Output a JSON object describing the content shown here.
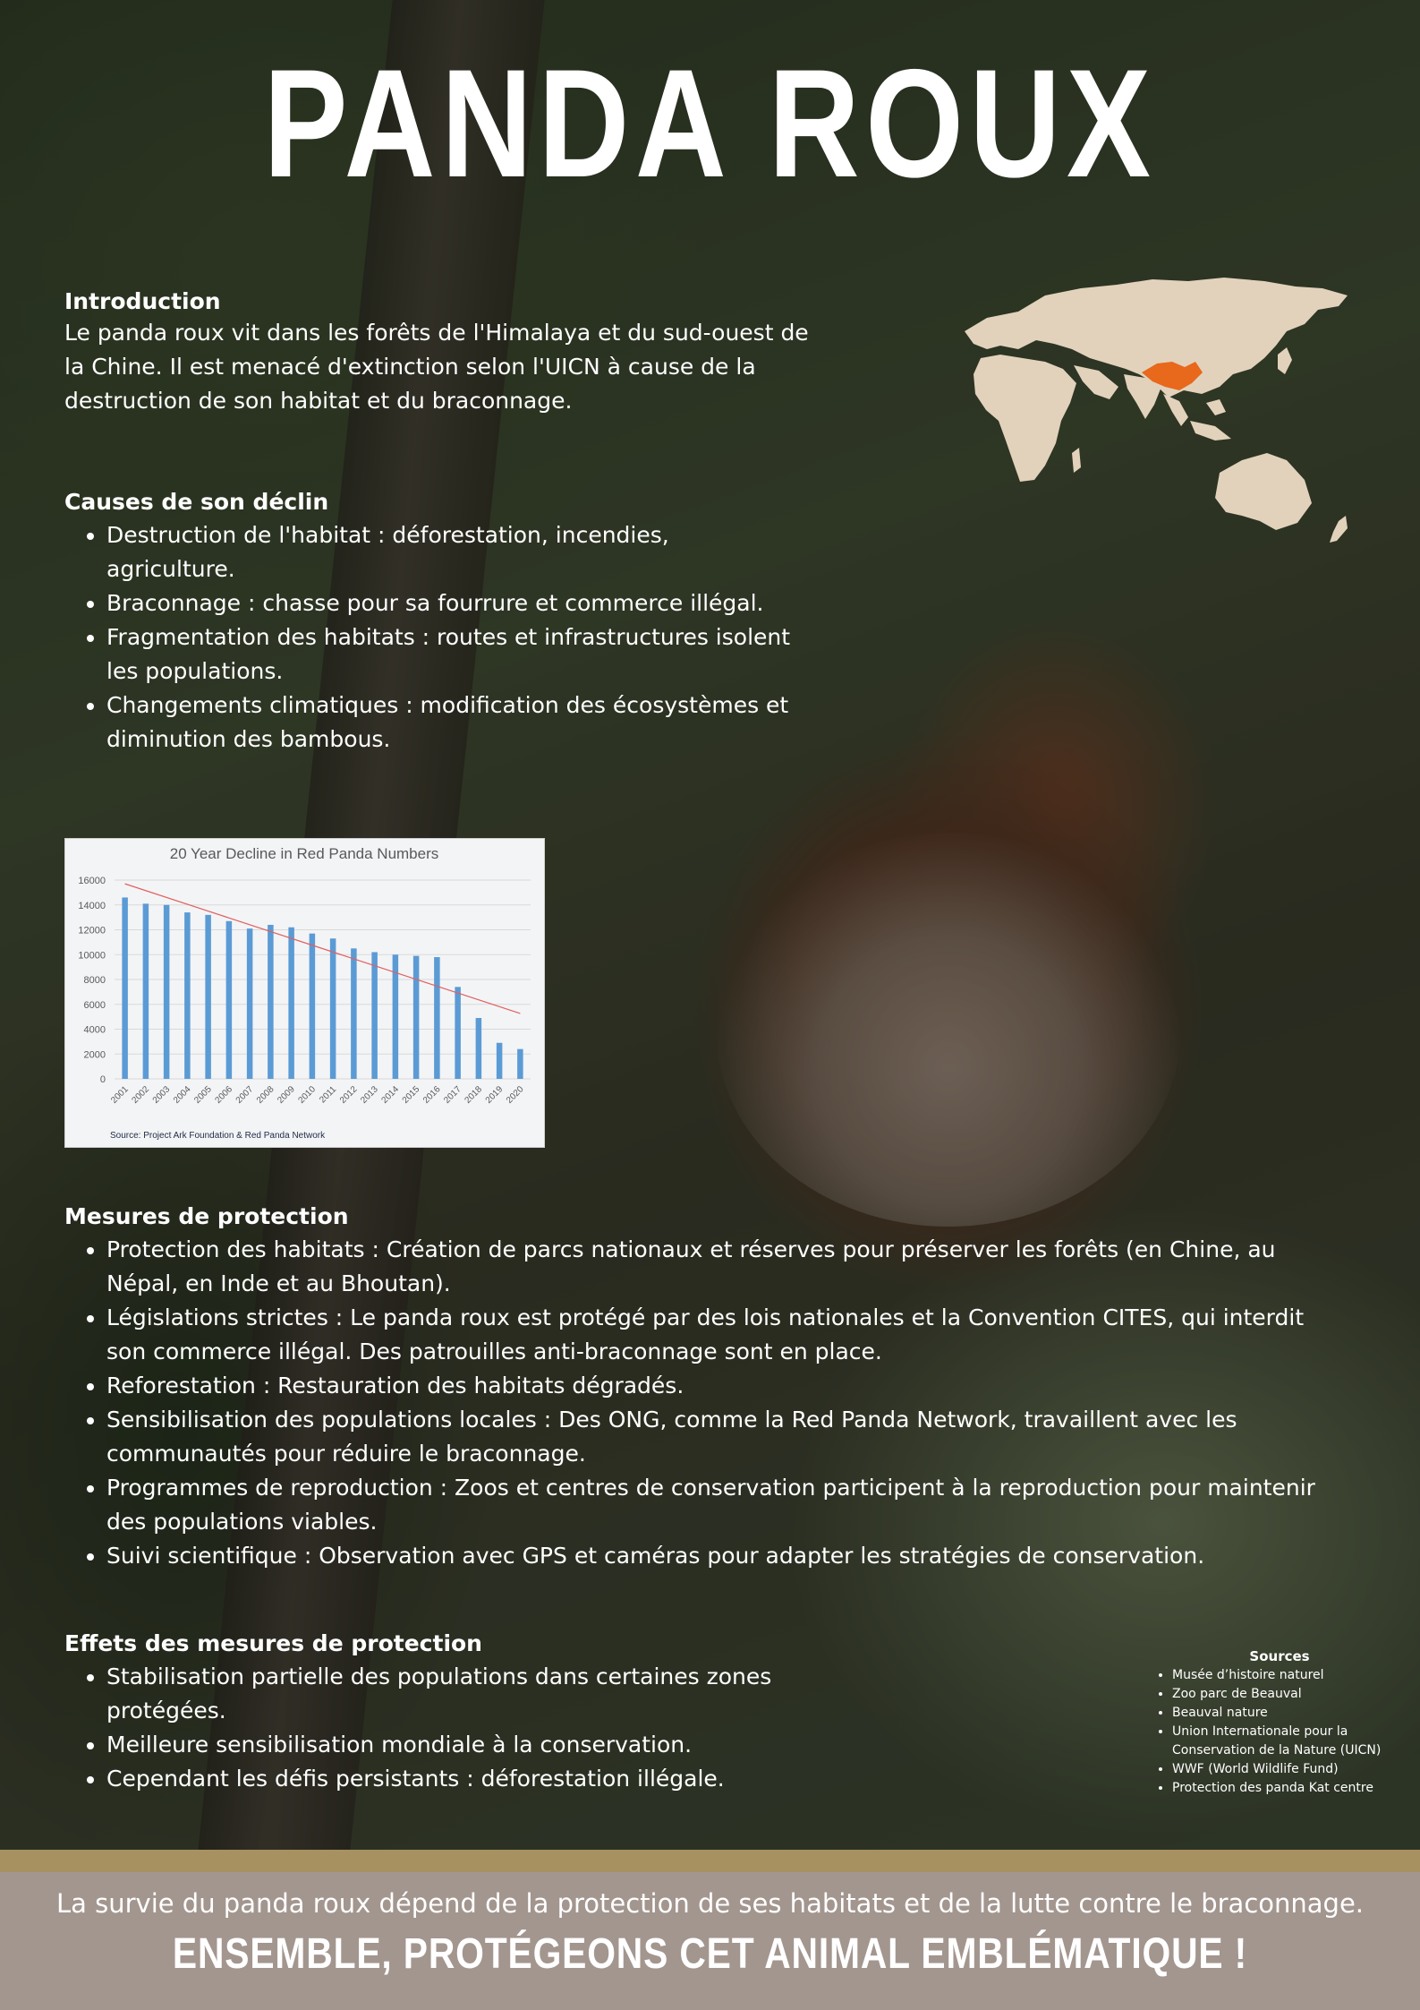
{
  "title": "PANDA ROUX",
  "introduction": {
    "heading": "Introduction",
    "text": "Le panda roux vit dans les forêts de l'Himalaya et du sud-ouest de la Chine. Il est menacé d'extinction selon l'UICN à cause de la destruction de son habitat et du braconnage."
  },
  "causes": {
    "heading": "Causes de son déclin",
    "items": [
      "Destruction de l'habitat : déforestation, incendies, agriculture.",
      "Braconnage : chasse pour sa fourrure et commerce illégal.",
      "Fragmentation des habitats : routes et infrastructures isolent les populations.",
      "Changements climatiques : modification des écosystèmes et diminution des bambous."
    ]
  },
  "chart_data": {
    "type": "bar",
    "title": "20 Year Decline in Red Panda Numbers",
    "source": "Source: Project Ark Foundation & Red Panda Network",
    "categories": [
      "2001",
      "2002",
      "2003",
      "2004",
      "2005",
      "2006",
      "2007",
      "2008",
      "2009",
      "2010",
      "2011",
      "2012",
      "2013",
      "2014",
      "2015",
      "2016",
      "2017",
      "2018",
      "2019",
      "2020"
    ],
    "values": [
      14600,
      14100,
      14000,
      13400,
      13200,
      12700,
      12100,
      12400,
      12200,
      11700,
      11300,
      10500,
      10200,
      10000,
      9900,
      9800,
      7400,
      4900,
      2900,
      2400
    ],
    "yticks": [
      0,
      2000,
      4000,
      6000,
      8000,
      10000,
      12000,
      14000,
      16000
    ],
    "ylim": [
      0,
      16000
    ],
    "trendline": true,
    "bar_color": "#5b9bd5",
    "trend_color": "#e06060",
    "grid": true
  },
  "mesures": {
    "heading": "Mesures de protection",
    "items": [
      "Protection des habitats : Création de parcs nationaux et réserves pour préserver les forêts (en Chine, au Népal, en Inde et au Bhoutan).",
      "Législations strictes : Le panda roux est protégé par des lois nationales et la Convention CITES, qui interdit son commerce illégal. Des patrouilles anti-braconnage sont en place.",
      "Reforestation : Restauration des habitats dégradés.",
      "Sensibilisation des populations locales : Des ONG, comme la Red Panda Network, travaillent avec les communautés pour réduire le braconnage.",
      "Programmes de reproduction : Zoos et centres de conservation participent à la reproduction pour maintenir des populations viables.",
      "Suivi scientifique : Observation avec GPS et caméras pour adapter les stratégies de conservation."
    ]
  },
  "effets": {
    "heading": "Effets des mesures de protection",
    "items": [
      "Stabilisation partielle des populations dans certaines zones protégées.",
      "Meilleure sensibilisation mondiale à la conservation.",
      "Cependant les défis persistants : déforestation illégale."
    ]
  },
  "sources": {
    "heading": "Sources",
    "items": [
      "Musée d’histoire naturel",
      "Zoo parc de Beauval",
      "Beauval nature",
      "Union Internationale pour la Conservation de la Nature (UICN)",
      "WWF (World Wildlife Fund)",
      "Protection des panda Kat centre"
    ]
  },
  "footer": {
    "line1": "La survie du panda roux dépend de la protection de ses habitats et de la lutte contre le braconnage.",
    "line2": "ENSEMBLE, PROTÉGEONS CET ANIMAL EMBLÉMATIQUE !"
  },
  "colors": {
    "map_land": "#e2d2bb",
    "map_range": "#e8681c",
    "footer_bg": "#a3968f",
    "gold_bar": "#a89160"
  },
  "icons": [
    "world-map-illustration"
  ]
}
